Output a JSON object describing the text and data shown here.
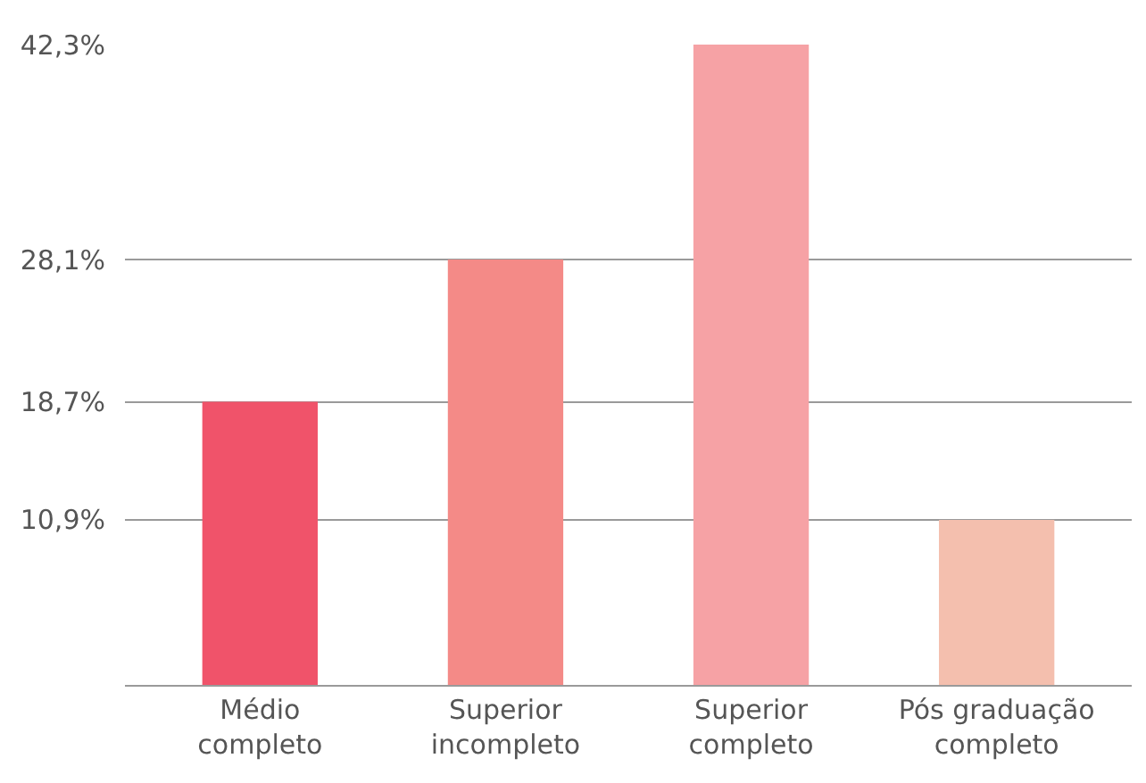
{
  "chart_data": {
    "type": "bar",
    "categories": [
      "Médio\ncompleto",
      "Superior\nincompleto",
      "Superior\ncompleto",
      "Pós graduação\ncompleto"
    ],
    "values": [
      18.7,
      28.1,
      42.3,
      10.9
    ],
    "colors": [
      "#f0536a",
      "#f48a87",
      "#f6a2a5",
      "#f4bfae"
    ],
    "ylim": [
      0,
      42.3
    ],
    "yticks": [
      {
        "value": 10.9,
        "label": "10,9%"
      },
      {
        "value": 18.7,
        "label": "18,7%"
      },
      {
        "value": 28.1,
        "label": "28,1%"
      },
      {
        "value": 42.3,
        "label": "42,3%"
      }
    ],
    "grid": "y"
  }
}
